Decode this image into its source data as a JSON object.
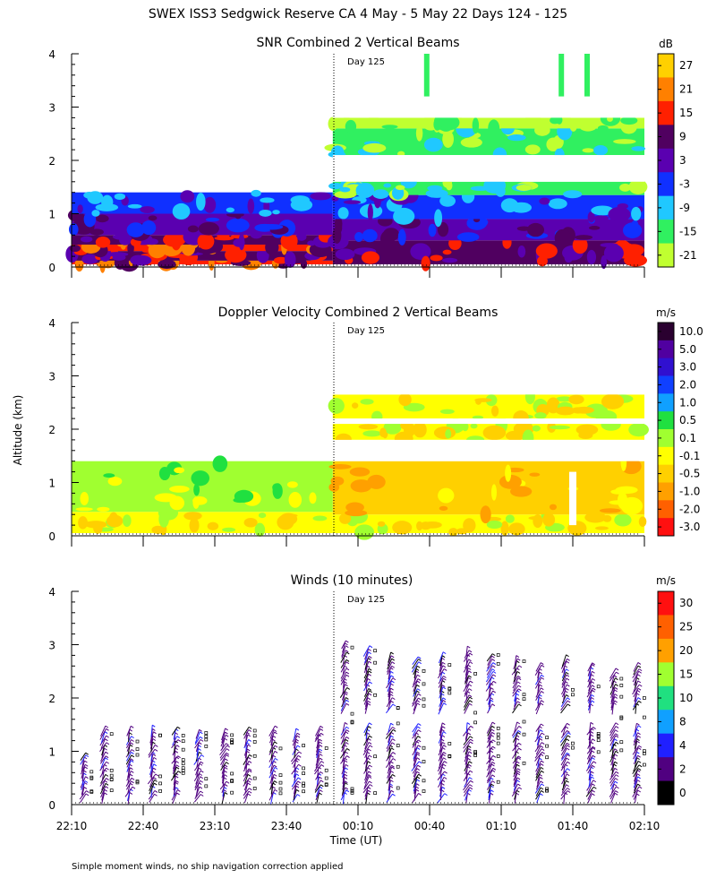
{
  "title": "SWEX ISS3 Sedgwick Reserve CA   4 May -  5 May 22 Days 124 - 125",
  "ylabel": "Altitude (km)",
  "xlabel": "Time (UT)",
  "day_marker": "Day 125",
  "footnote": "Simple moment winds, no ship navigation correction applied",
  "x_ticks": [
    "22:10",
    "22:40",
    "23:10",
    "23:40",
    "00:10",
    "00:40",
    "01:10",
    "01:40",
    "02:10"
  ],
  "y_ticks": [
    "0",
    "1",
    "2",
    "3",
    "4"
  ],
  "chart_data": [
    {
      "type": "heatmap",
      "title": "SNR Combined 2 Vertical Beams",
      "xlabel": "Time (UT)",
      "ylabel": "Altitude (km)",
      "x_range": [
        "22:10",
        "02:10"
      ],
      "ylim": [
        0,
        4
      ],
      "day_boundary": "00:00",
      "colorbar_unit": "dB",
      "colorbar_ticks": [
        "27",
        "21",
        "15",
        "9",
        "3",
        "-3",
        "-9",
        "-15",
        "-21"
      ],
      "colorbar_colors": [
        "#ffd000",
        "#ff8000",
        "#ff2000",
        "#500060",
        "#5a00b0",
        "#1030ff",
        "#20c8ff",
        "#30f060",
        "#c0ff30"
      ],
      "layers": [
        {
          "t0": 0.0,
          "t1": 0.456,
          "z0": 0.05,
          "z1": 0.12,
          "value_db": 15
        },
        {
          "t0": 0.0,
          "t1": 0.456,
          "z0": 0.12,
          "z1": 0.3,
          "value_db": 9
        },
        {
          "t0": 0.0,
          "t1": 0.456,
          "z0": 0.3,
          "z1": 0.42,
          "value_db": 15
        },
        {
          "t0": 0.0,
          "t1": 0.456,
          "z0": 0.42,
          "z1": 0.6,
          "value_db": 9
        },
        {
          "t0": 0.0,
          "t1": 0.456,
          "z0": 0.6,
          "z1": 1.0,
          "value_db": 3
        },
        {
          "t0": 0.0,
          "t1": 0.456,
          "z0": 1.0,
          "z1": 1.4,
          "value_db": -3
        },
        {
          "t0": 0.456,
          "t1": 1.0,
          "z0": 0.05,
          "z1": 0.5,
          "value_db": 9
        },
        {
          "t0": 0.456,
          "t1": 1.0,
          "z0": 0.5,
          "z1": 0.9,
          "value_db": 3
        },
        {
          "t0": 0.456,
          "t1": 1.0,
          "z0": 0.9,
          "z1": 1.35,
          "value_db": -3
        },
        {
          "t0": 0.456,
          "t1": 1.0,
          "z0": 1.35,
          "z1": 1.6,
          "value_db": -15
        },
        {
          "t0": 0.456,
          "t1": 1.0,
          "z0": 2.1,
          "z1": 2.6,
          "value_db": -15
        },
        {
          "t0": 0.456,
          "t1": 1.0,
          "z0": 2.6,
          "z1": 2.8,
          "value_db": -21
        }
      ]
    },
    {
      "type": "heatmap",
      "title": "Doppler Velocity Combined 2 Vertical Beams",
      "xlabel": "Time (UT)",
      "ylabel": "Altitude (km)",
      "x_range": [
        "22:10",
        "02:10"
      ],
      "ylim": [
        0,
        4
      ],
      "colorbar_unit": "m/s",
      "colorbar_ticks": [
        "10.0",
        "5.0",
        "3.0",
        "2.0",
        "1.0",
        "0.5",
        "0.1",
        "-0.1",
        "-0.5",
        "-1.0",
        "-2.0",
        "-3.0"
      ],
      "colorbar_colors": [
        "#2a0030",
        "#5000a0",
        "#3010d0",
        "#1040ff",
        "#10a0ff",
        "#20e040",
        "#a0ff30",
        "#ffff00",
        "#ffd000",
        "#ffa000",
        "#ff6000",
        "#ff1010"
      ],
      "layers": [
        {
          "t0": 0.0,
          "t1": 0.456,
          "z0": 0.05,
          "z1": 0.45,
          "value_ms": -0.1
        },
        {
          "t0": 0.0,
          "t1": 0.456,
          "z0": 0.45,
          "z1": 1.4,
          "value_ms": 0.1
        },
        {
          "t0": 0.456,
          "t1": 1.0,
          "z0": 0.05,
          "z1": 0.4,
          "value_ms": -0.1
        },
        {
          "t0": 0.456,
          "t1": 1.0,
          "z0": 0.4,
          "z1": 1.4,
          "value_ms": -0.5
        },
        {
          "t0": 0.456,
          "t1": 1.0,
          "z0": 1.8,
          "z1": 2.1,
          "value_ms": -0.1
        },
        {
          "t0": 0.456,
          "t1": 1.0,
          "z0": 2.2,
          "z1": 2.65,
          "value_ms": -0.1
        }
      ]
    },
    {
      "type": "scatter",
      "title": "Winds (10 minutes)",
      "xlabel": "Time (UT)",
      "ylabel": "Altitude (km)",
      "x_range": [
        "22:10",
        "02:10"
      ],
      "ylim": [
        0,
        4
      ],
      "colorbar_unit": "m/s",
      "colorbar_ticks": [
        "30",
        "25",
        "20",
        "15",
        "10",
        "8",
        "4",
        "2",
        "0"
      ],
      "colorbar_colors": [
        "#ff1010",
        "#ff6000",
        "#ffa000",
        "#a0ff30",
        "#20e080",
        "#10a0ff",
        "#2020ff",
        "#500080",
        "#000000"
      ],
      "profile_times_frac": [
        0.02,
        0.055,
        0.1,
        0.14,
        0.18,
        0.22,
        0.265,
        0.305,
        0.35,
        0.39,
        0.43,
        0.475,
        0.515,
        0.555,
        0.6,
        0.645,
        0.69,
        0.73,
        0.775,
        0.815,
        0.86,
        0.905,
        0.945,
        0.985
      ],
      "profile_tops_km": [
        0.9,
        1.4,
        1.4,
        1.4,
        1.4,
        1.35,
        1.35,
        1.4,
        1.4,
        1.35,
        1.4,
        3.0,
        2.9,
        2.8,
        2.7,
        2.8,
        2.9,
        2.8,
        2.7,
        2.6,
        2.7,
        2.6,
        2.5,
        2.6
      ],
      "typical_speed_ms": 4
    }
  ]
}
